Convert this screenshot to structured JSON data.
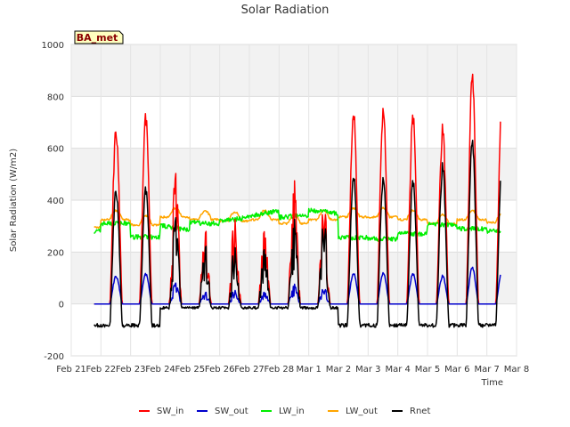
{
  "chart_data": {
    "type": "line",
    "title": "Solar Radiation",
    "xlabel": "Time",
    "ylabel": "Solar Radiation (W/m2)",
    "badge": "BA_met",
    "x_ticks": [
      "Feb 21",
      "Feb 22",
      "Feb 23",
      "Feb 24",
      "Feb 25",
      "Feb 26",
      "Feb 27",
      "Feb 28",
      "Mar 1",
      "Mar 2",
      "Mar 3",
      "Mar 4",
      "Mar 5",
      "Mar 6",
      "Mar 7",
      "Mar 8"
    ],
    "y_ticks": [
      -200,
      0,
      200,
      400,
      600,
      800,
      1000
    ],
    "ylim": [
      -200,
      1000
    ],
    "xlim_days": [
      0,
      15
    ],
    "grid": true,
    "legend_position": "bottom",
    "days": [
      {
        "day": 1,
        "sw_in": 710,
        "lw_in": 310,
        "lw_out": 360,
        "rnet": 465
      },
      {
        "day": 2,
        "sw_in": 740,
        "lw_in": 258,
        "lw_out": 340,
        "rnet": 455
      },
      {
        "day": 3,
        "sw_in": 575,
        "lw_in": 300,
        "lw_out": 370,
        "rnet": 380
      },
      {
        "day": 4,
        "sw_in": 295,
        "lw_in": 330,
        "lw_out": 360,
        "rnet": 235
      },
      {
        "day": 5,
        "sw_in": 375,
        "lw_in": 340,
        "lw_out": 355,
        "rnet": 250
      },
      {
        "day": 6,
        "sw_in": 300,
        "lw_in": 345,
        "lw_out": 360,
        "rnet": 225
      },
      {
        "day": 7,
        "sw_in": 495,
        "lw_in": 320,
        "lw_out": 345,
        "rnet": 340
      },
      {
        "day": 8,
        "sw_in": 415,
        "lw_in": 340,
        "lw_out": 360,
        "rnet": 350
      },
      {
        "day": 9,
        "sw_in": 785,
        "lw_in": 255,
        "lw_out": 370,
        "rnet": 525
      },
      {
        "day": 10,
        "sw_in": 765,
        "lw_in": 250,
        "lw_out": 370,
        "rnet": 495
      },
      {
        "day": 11,
        "sw_in": 765,
        "lw_in": 270,
        "lw_out": 360,
        "rnet": 500
      },
      {
        "day": 12,
        "sw_in": 700,
        "lw_in": 305,
        "lw_out": 345,
        "rnet": 550
      },
      {
        "day": 13,
        "sw_in": 905,
        "lw_in": 290,
        "lw_out": 360,
        "rnet": 645
      },
      {
        "day": 14,
        "sw_in": 825,
        "lw_in": 280,
        "lw_out": 350,
        "rnet": 565
      }
    ],
    "series": [
      {
        "name": "SW_in",
        "color": "#ff0000"
      },
      {
        "name": "SW_out",
        "color": "#0000cc"
      },
      {
        "name": "LW_in",
        "color": "#00ee00"
      },
      {
        "name": "LW_out",
        "color": "#ffa500"
      },
      {
        "name": "Rnet",
        "color": "#000000"
      }
    ]
  }
}
